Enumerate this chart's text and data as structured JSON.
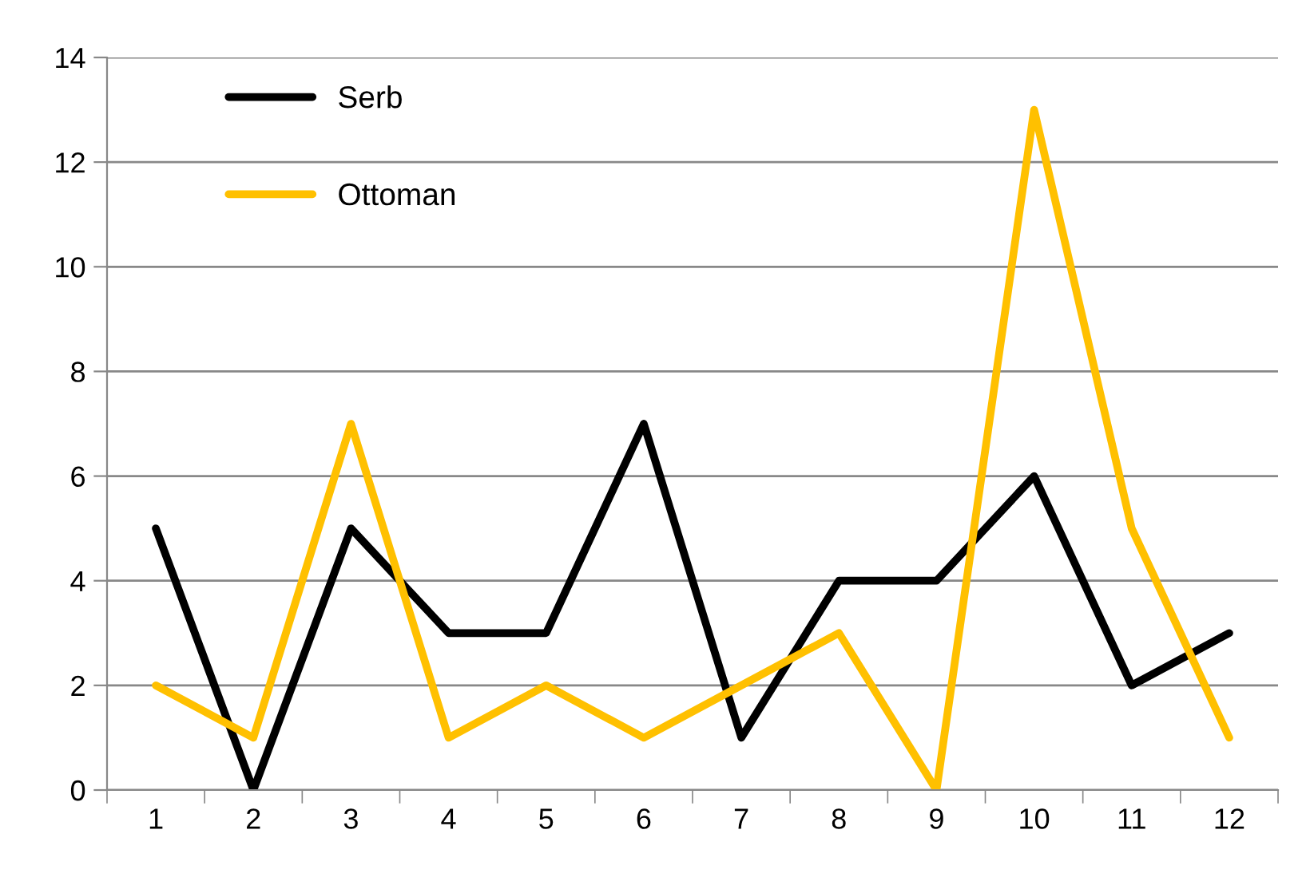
{
  "chart_data": {
    "type": "line",
    "categories": [
      "1",
      "2",
      "3",
      "4",
      "5",
      "6",
      "7",
      "8",
      "9",
      "10",
      "11",
      "12"
    ],
    "series": [
      {
        "name": "Serb",
        "color": "#000000",
        "values": [
          5,
          0,
          5,
          3,
          3,
          7,
          1,
          4,
          4,
          6,
          2,
          3
        ]
      },
      {
        "name": "Ottoman",
        "color": "#ffc000",
        "values": [
          2,
          1,
          7,
          1,
          2,
          1,
          2,
          3,
          0,
          13,
          5,
          1
        ]
      }
    ],
    "ylim": [
      0,
      14
    ],
    "yticks": [
      0,
      2,
      4,
      6,
      8,
      10,
      12,
      14
    ],
    "grid": "y",
    "legend": "top left",
    "marker": "none",
    "line_style": "solid"
  }
}
